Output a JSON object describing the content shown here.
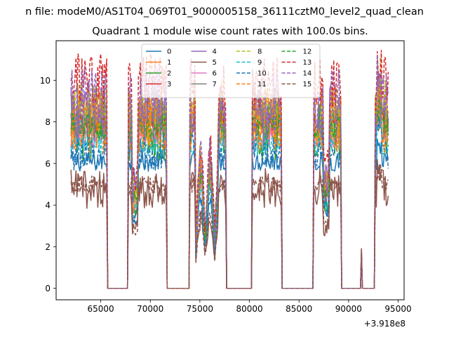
{
  "chart_data": {
    "type": "line",
    "suptitle": "n file: modeM0/AS1T04_069T01_9000005158_36111cztM0_level2_quad_clean",
    "title": "Quadrant 1 module wise count rates with 100.0s bins.",
    "xlabel": "",
    "ylabel": "",
    "x_offset_label": "+3.918e8",
    "xlim": [
      60500,
      95600
    ],
    "ylim": [
      -0.55,
      11.9
    ],
    "x_ticks": [
      65000,
      70000,
      75000,
      80000,
      85000,
      90000,
      95000
    ],
    "x_tick_labels": [
      "65000",
      "70000",
      "75000",
      "80000",
      "85000",
      "90000",
      "95000"
    ],
    "y_ticks": [
      0,
      2,
      4,
      6,
      8,
      10
    ],
    "y_tick_labels": [
      "0",
      "2",
      "4",
      "6",
      "8",
      "10"
    ],
    "legend_position": "top-center",
    "bin_width_s": 100,
    "gti_segments": [
      {
        "start": 62000,
        "end": 65600
      },
      {
        "start": 67800,
        "end": 71600
      },
      {
        "start": 74000,
        "end": 77600
      },
      {
        "start": 80300,
        "end": 83200
      },
      {
        "start": 86500,
        "end": 89200
      },
      {
        "start": 92700,
        "end": 94000
      }
    ],
    "spikes": [
      {
        "x": 91300,
        "y": 1.9
      }
    ],
    "series": [
      {
        "name": "0",
        "color": "#1f77b4",
        "style": "solid",
        "mean": 6.1
      },
      {
        "name": "1",
        "color": "#ff7f0e",
        "style": "solid",
        "mean": 8.0
      },
      {
        "name": "2",
        "color": "#2ca02c",
        "style": "solid",
        "mean": 7.6
      },
      {
        "name": "3",
        "color": "#d62728",
        "style": "solid",
        "mean": 7.9
      },
      {
        "name": "4",
        "color": "#9467bd",
        "style": "solid",
        "mean": 8.7
      },
      {
        "name": "5",
        "color": "#8c564b",
        "style": "solid",
        "mean": 4.8
      },
      {
        "name": "6",
        "color": "#e377c2",
        "style": "solid",
        "mean": 7.3
      },
      {
        "name": "7",
        "color": "#7f7f7f",
        "style": "solid",
        "mean": 8.2
      },
      {
        "name": "8",
        "color": "#bcbd22",
        "style": "dashed",
        "mean": 8.4
      },
      {
        "name": "9",
        "color": "#17becf",
        "style": "dashed",
        "mean": 6.9
      },
      {
        "name": "10",
        "color": "#1f77b4",
        "style": "dashed",
        "mean": 6.6
      },
      {
        "name": "11",
        "color": "#ff7f0e",
        "style": "dashed",
        "mean": 8.1
      },
      {
        "name": "12",
        "color": "#2ca02c",
        "style": "dashed",
        "mean": 7.8
      },
      {
        "name": "13",
        "color": "#d62728",
        "style": "dashed",
        "mean": 9.9
      },
      {
        "name": "14",
        "color": "#9467bd",
        "style": "dashed",
        "mean": 8.9
      },
      {
        "name": "15",
        "color": "#8c564b",
        "style": "dashed",
        "mean": 5.0
      }
    ]
  }
}
